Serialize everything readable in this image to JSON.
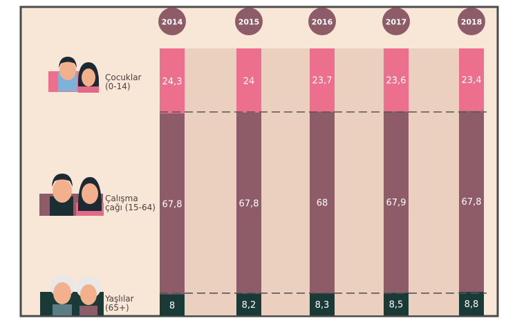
{
  "chart_data": {
    "type": "bar",
    "stacked": true,
    "categories": [
      "2014",
      "2015",
      "2016",
      "2017",
      "2018"
    ],
    "series": [
      {
        "name": "Çocuklar (0-14)",
        "labels": [
          "24,3",
          "24",
          "23,7",
          "23,6",
          "23,4"
        ],
        "values": [
          24.3,
          24,
          23.7,
          23.6,
          23.4
        ],
        "color": "#ec6f8e"
      },
      {
        "name": "Çalışma çağı (15-64)",
        "labels": [
          "67,8",
          "67,8",
          "68",
          "67,9",
          "67,8"
        ],
        "values": [
          67.8,
          67.8,
          68,
          67.9,
          67.8
        ],
        "color": "#8e5c69"
      },
      {
        "name": "Yaşlılar (65+)",
        "labels": [
          "8",
          "8,2",
          "8,3",
          "8,5",
          "8,8"
        ],
        "values": [
          8,
          8.2,
          8.3,
          8.5,
          8.8
        ],
        "color": "#1a3a38"
      }
    ],
    "ylim": [
      0,
      100
    ]
  },
  "legend": {
    "children": {
      "line1": "Çocuklar",
      "line2": "(0-14)"
    },
    "working": {
      "line1": "Çalışma",
      "line2": "çağı (15-64)"
    },
    "elderly": {
      "line1": "Yaşlılar",
      "line2": "(65+)"
    }
  },
  "colors": {
    "background": "#f8e6d6",
    "stripe": "#ecd0bf",
    "year_badge": "#8e5c69",
    "dashed_line": "#555555",
    "frame": "#4a4a4a"
  }
}
